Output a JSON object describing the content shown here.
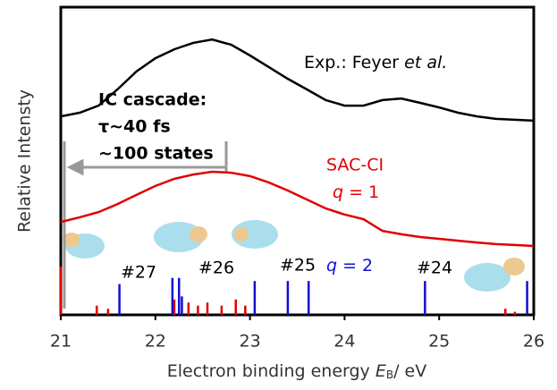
{
  "chart_data": {
    "type": "line",
    "xlabel": {
      "text": "Electron binding energy ",
      "symbol": "E",
      "subscript": "B",
      "unit": "/ eV"
    },
    "ylabel": "Relative Intensty",
    "xlim": [
      21,
      26
    ],
    "xticks": [
      21,
      22,
      23,
      24,
      25,
      26
    ],
    "ylim": [
      0,
      1
    ],
    "series": [
      {
        "color": "#000000",
        "x": [
          21.0,
          21.2,
          21.4,
          21.6,
          21.8,
          22.0,
          22.2,
          22.4,
          22.6,
          22.8,
          23.0,
          23.2,
          23.4,
          23.6,
          23.8,
          24.0,
          24.2,
          24.4,
          24.6,
          24.8,
          25.0,
          25.2,
          25.4,
          25.6,
          25.8,
          26.0
        ],
        "values": [
          0.645,
          0.657,
          0.68,
          0.733,
          0.791,
          0.834,
          0.863,
          0.884,
          0.895,
          0.878,
          0.843,
          0.805,
          0.767,
          0.733,
          0.698,
          0.68,
          0.68,
          0.698,
          0.703,
          0.689,
          0.674,
          0.657,
          0.645,
          0.637,
          0.634,
          0.631
        ]
      },
      {
        "color": "#e00000",
        "x": [
          21.0,
          21.2,
          21.4,
          21.6,
          21.8,
          22.0,
          22.2,
          22.4,
          22.6,
          22.8,
          23.0,
          23.2,
          23.4,
          23.6,
          23.8,
          24.0,
          24.2,
          24.4,
          24.6,
          24.8,
          25.0,
          25.2,
          25.4,
          25.6,
          25.8,
          26.0
        ],
        "values": [
          0.302,
          0.317,
          0.334,
          0.36,
          0.39,
          0.419,
          0.442,
          0.456,
          0.465,
          0.462,
          0.451,
          0.43,
          0.404,
          0.375,
          0.346,
          0.326,
          0.311,
          0.273,
          0.262,
          0.253,
          0.247,
          0.241,
          0.235,
          0.23,
          0.227,
          0.224
        ]
      }
    ],
    "sticks": [
      {
        "color": "#e00000",
        "x": [
          21.0,
          21.38,
          21.5,
          22.2,
          22.35,
          22.45,
          22.55,
          22.7,
          22.85,
          22.95,
          25.7,
          25.8
        ],
        "values": [
          0.157,
          0.03,
          0.02,
          0.05,
          0.04,
          0.03,
          0.04,
          0.03,
          0.05,
          0.03,
          0.02,
          0.01
        ]
      },
      {
        "color": "#1010d0",
        "x": [
          21.62,
          22.18,
          22.25,
          22.28,
          23.05,
          23.4,
          23.62,
          24.85,
          25.93
        ],
        "values": [
          0.1,
          0.12,
          0.12,
          0.06,
          0.11,
          0.11,
          0.11,
          0.11,
          0.11
        ]
      }
    ],
    "annotations": {
      "experiment": {
        "text": "Exp.: Feyer ",
        "italic": "et al."
      },
      "cascade": [
        "IC cascade:",
        "τ~40 fs",
        "~100 states"
      ],
      "sac_ci": "SAC-CI",
      "q1": {
        "symbol": "q",
        "text": " = 1"
      },
      "q2": {
        "symbol": "q",
        "text": " = 2"
      },
      "states": [
        "#27",
        "#26",
        "#25",
        "#24"
      ]
    }
  }
}
